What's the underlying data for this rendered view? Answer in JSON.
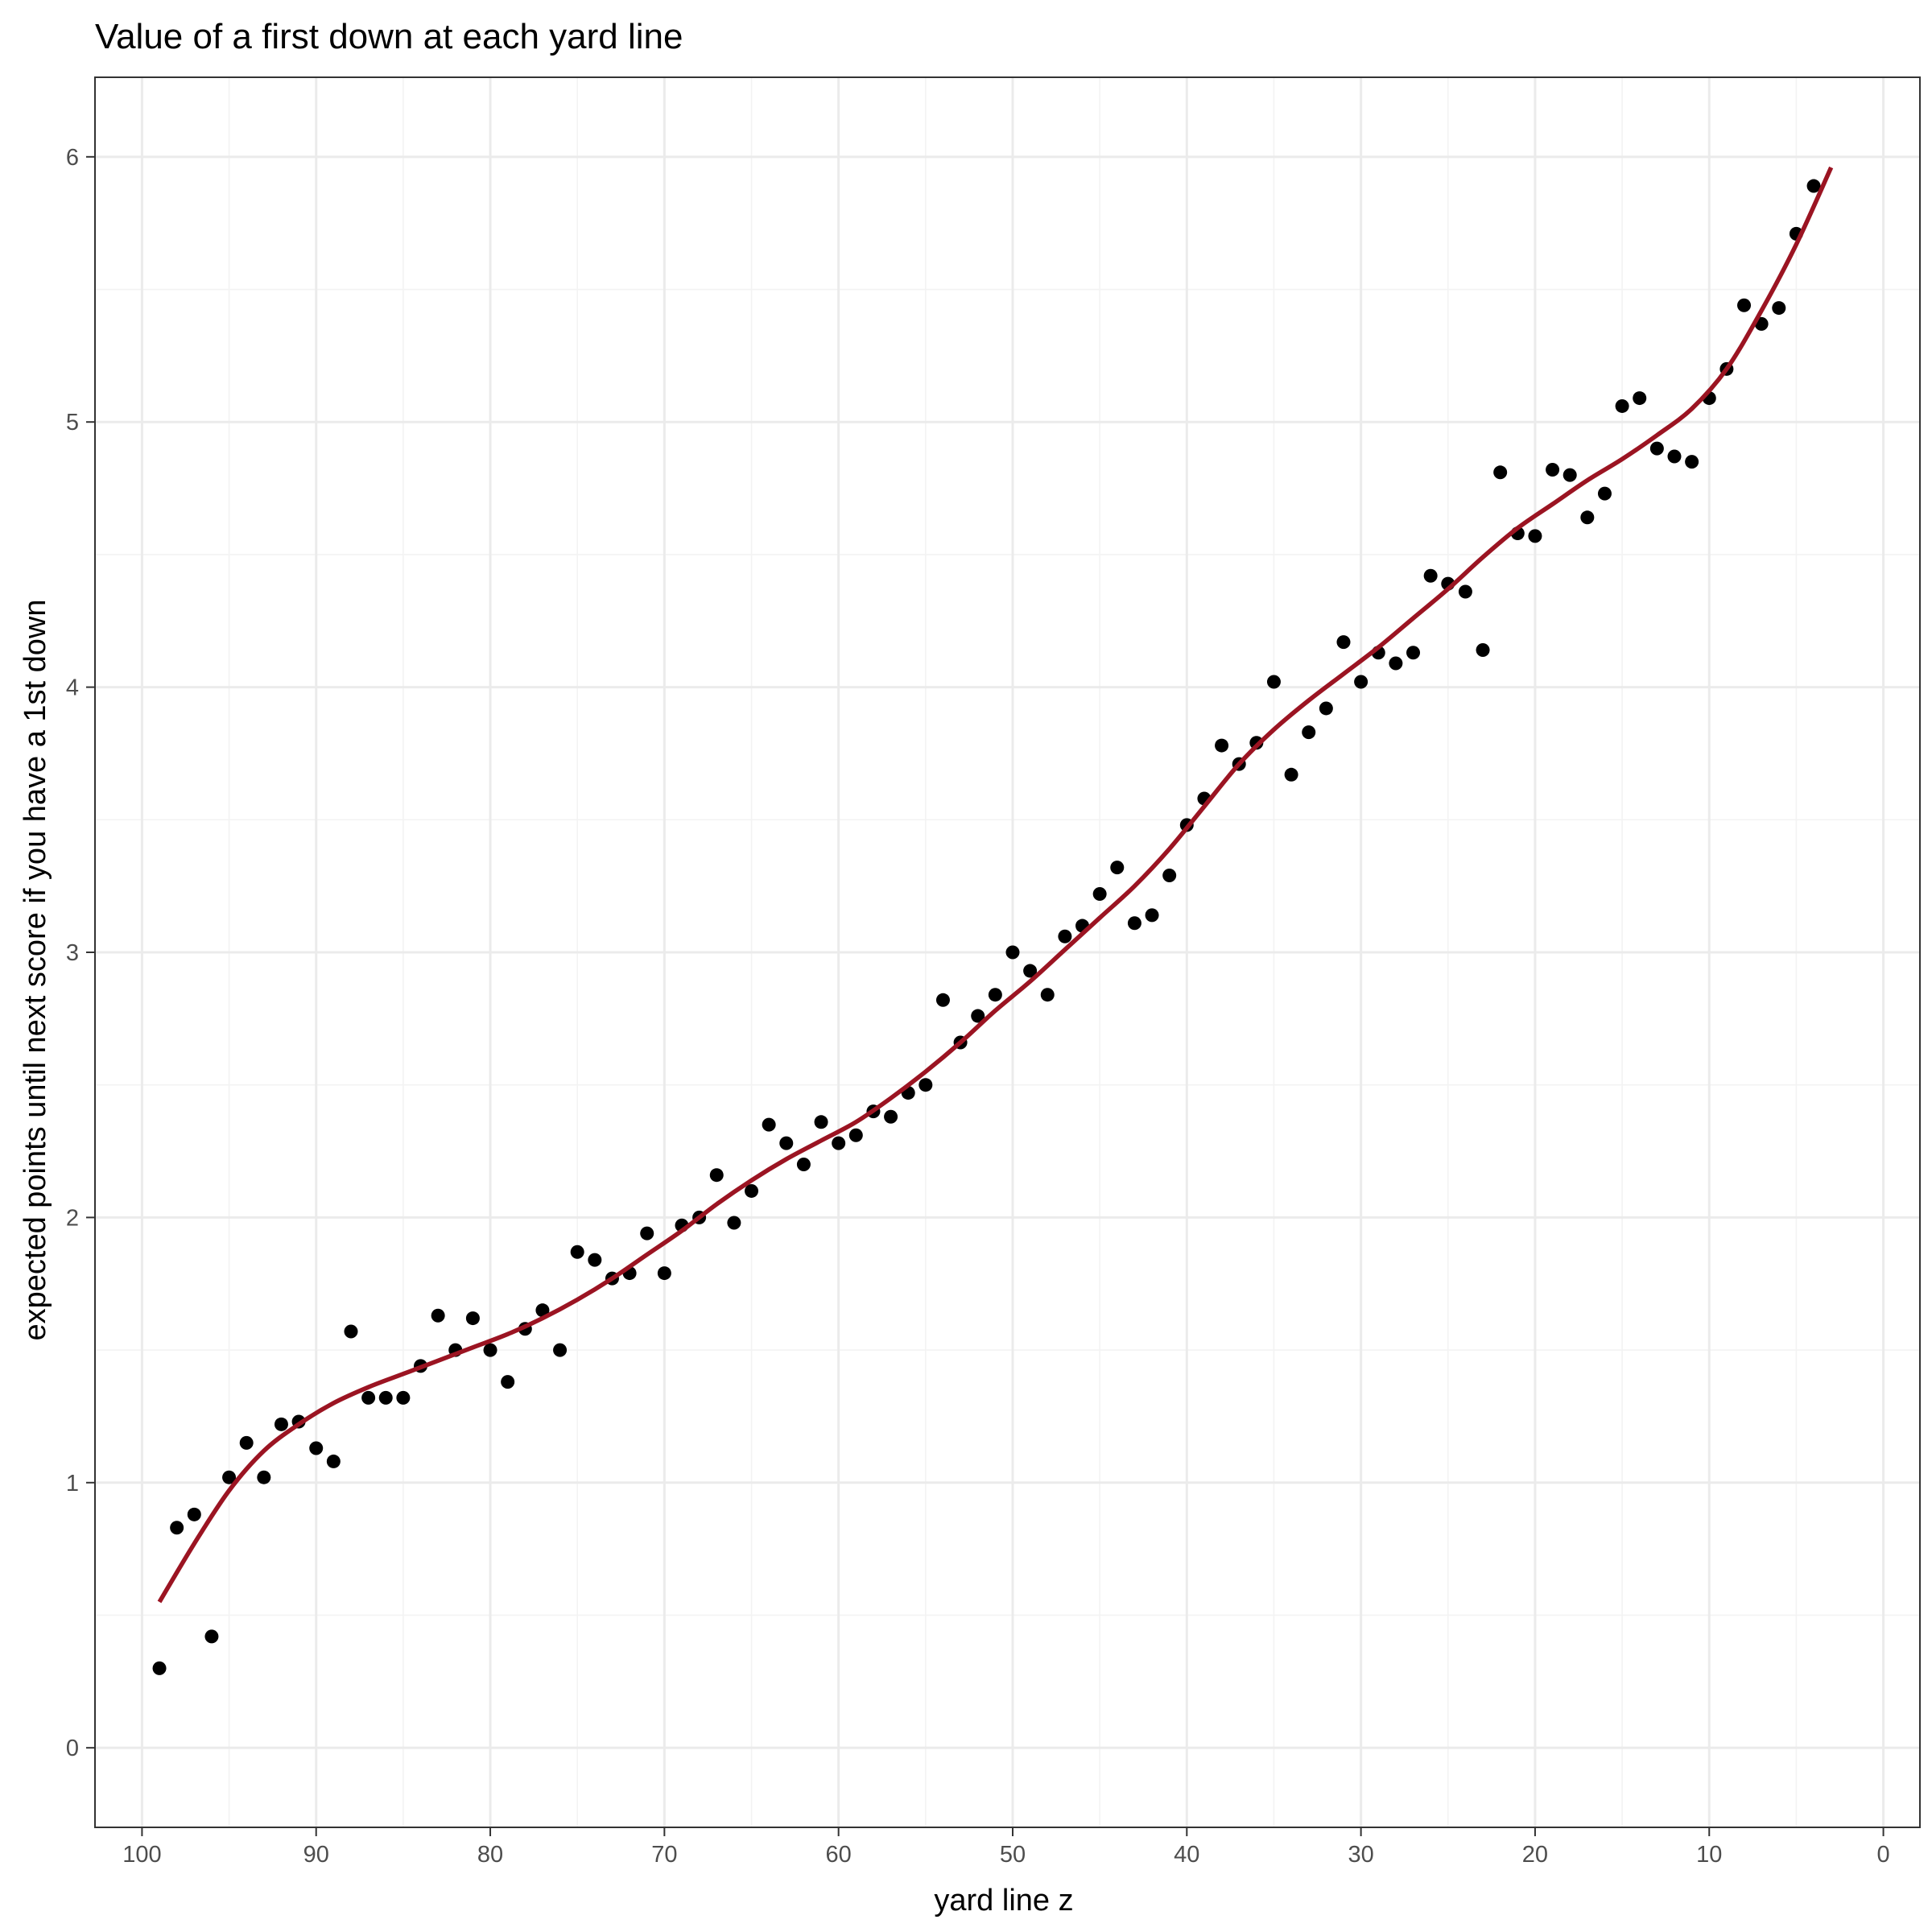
{
  "chart_data": {
    "type": "scatter",
    "title": "Value of a first down at each yard line",
    "xlabel": "yard line z",
    "ylabel": "expected points until next score if you have a 1st down",
    "x_reversed": true,
    "xlim": [
      102.7,
      -2.1
    ],
    "ylim": [
      -0.3,
      6.3
    ],
    "x_ticks": [
      100,
      90,
      80,
      70,
      60,
      50,
      40,
      30,
      20,
      10,
      0
    ],
    "x_tick_labels": [
      "100",
      "90",
      "80",
      "70",
      "60",
      "50",
      "40",
      "30",
      "20",
      "10",
      "0"
    ],
    "y_ticks": [
      0,
      1,
      2,
      3,
      4,
      5,
      6
    ],
    "y_tick_labels": [
      "0",
      "1",
      "2",
      "3",
      "4",
      "5",
      "6"
    ],
    "grid": true,
    "theme": "bw",
    "colors": {
      "points": "#000000",
      "smooth_line": "#9b1422",
      "grid_major": "#ebebeb",
      "grid_minor": "#f3f3f3",
      "panel_border": "#333333"
    },
    "series": [
      {
        "kind": "points",
        "x": [
          99,
          98,
          97,
          96,
          95,
          94,
          93,
          92,
          91,
          90,
          89,
          88,
          87,
          86,
          85,
          84,
          83,
          82,
          81,
          80,
          79,
          78,
          77,
          76,
          75,
          74,
          73,
          72,
          71,
          70,
          69,
          68,
          67,
          66,
          65,
          64,
          63,
          62,
          61,
          60,
          59,
          58,
          57,
          56,
          55,
          54,
          53,
          52,
          51,
          50,
          49,
          48,
          47,
          46,
          45,
          44,
          43,
          42,
          41,
          40,
          39,
          38,
          37,
          36,
          35,
          34,
          33,
          32,
          31,
          30,
          29,
          28,
          27,
          26,
          25,
          24,
          23,
          22,
          21,
          20,
          19,
          18,
          17,
          16,
          15,
          14,
          13,
          12,
          11,
          10,
          9,
          8,
          7,
          6,
          5,
          4
        ],
        "y": [
          0.3,
          0.83,
          0.88,
          0.42,
          1.02,
          1.15,
          1.02,
          1.22,
          1.23,
          1.13,
          1.08,
          1.57,
          1.32,
          1.32,
          1.32,
          1.44,
          1.63,
          1.5,
          1.62,
          1.5,
          1.38,
          1.58,
          1.65,
          1.5,
          1.87,
          1.84,
          1.77,
          1.79,
          1.94,
          1.79,
          1.97,
          2.0,
          2.16,
          1.98,
          2.1,
          2.35,
          2.28,
          2.2,
          2.36,
          2.28,
          2.31,
          2.4,
          2.38,
          2.47,
          2.5,
          2.82,
          2.66,
          2.76,
          2.84,
          3.0,
          2.93,
          2.84,
          3.06,
          3.1,
          3.22,
          3.32,
          3.11,
          3.14,
          3.29,
          3.48,
          3.58,
          3.78,
          3.71,
          3.79,
          4.02,
          3.67,
          3.83,
          3.92,
          4.17,
          4.02,
          4.13,
          4.09,
          4.13,
          4.42,
          4.39,
          4.36,
          4.14,
          4.81,
          4.58,
          4.57,
          4.82,
          4.8,
          4.64,
          4.73,
          5.06,
          5.09,
          4.9,
          4.87,
          4.85,
          5.09,
          5.2,
          5.44,
          5.37,
          5.43,
          5.71,
          5.89
        ]
      },
      {
        "kind": "smooth",
        "x": [
          99,
          97,
          95,
          93,
          91,
          89,
          87,
          85,
          83,
          81,
          79,
          77,
          75,
          73,
          71,
          69,
          67,
          65,
          63,
          61,
          59,
          57,
          55,
          53,
          51,
          49,
          47,
          45,
          43,
          41,
          39,
          37,
          35,
          33,
          31,
          29,
          27,
          25,
          23,
          21,
          19,
          17,
          15,
          13,
          11,
          9,
          7,
          5,
          3
        ],
        "y": [
          0.55,
          0.77,
          0.97,
          1.12,
          1.22,
          1.3,
          1.36,
          1.41,
          1.46,
          1.51,
          1.56,
          1.62,
          1.69,
          1.77,
          1.86,
          1.95,
          2.05,
          2.14,
          2.22,
          2.29,
          2.36,
          2.45,
          2.55,
          2.66,
          2.78,
          2.89,
          3.01,
          3.13,
          3.25,
          3.39,
          3.55,
          3.71,
          3.84,
          3.95,
          4.05,
          4.15,
          4.26,
          4.37,
          4.49,
          4.6,
          4.69,
          4.78,
          4.86,
          4.95,
          5.05,
          5.2,
          5.42,
          5.67,
          5.96
        ]
      }
    ]
  }
}
